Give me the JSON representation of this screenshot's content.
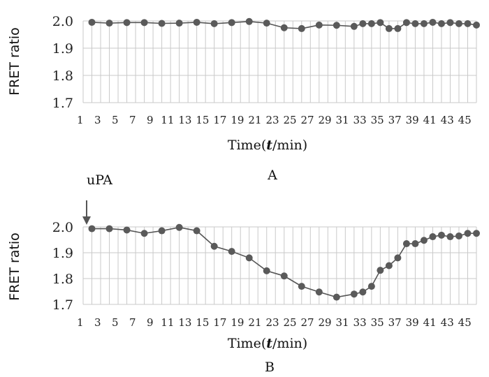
{
  "chart_data": [
    {
      "type": "line",
      "panel_label": "A",
      "ylabel": "FRET ratio",
      "xlabel_prefix": "Time(",
      "xlabel_var": "t",
      "xlabel_suffix": "/min)",
      "ylim": [
        1.7,
        2.0
      ],
      "yticks": [
        "2.0",
        "1.9",
        "1.8",
        "1.7"
      ],
      "ytick_values": [
        2.0,
        1.9,
        1.8,
        1.7
      ],
      "xlim": [
        1,
        46
      ],
      "xticks": [
        "1",
        "3",
        "5",
        "7",
        "9",
        "11",
        "13",
        "15",
        "17",
        "19",
        "21",
        "23",
        "25",
        "27",
        "29",
        "31",
        "33",
        "35",
        "37",
        "39",
        "41",
        "43",
        "45"
      ],
      "grid": true,
      "series": [
        {
          "x": [
            2,
            4,
            6,
            8,
            10,
            12,
            14,
            16,
            18,
            20,
            22,
            24,
            26,
            28,
            30,
            32,
            33,
            34,
            35,
            36,
            37,
            38,
            39,
            40,
            41,
            42,
            43,
            44,
            45,
            46
          ],
          "y": [
            1.995,
            1.992,
            1.994,
            1.994,
            1.991,
            1.992,
            1.995,
            1.99,
            1.994,
            1.998,
            1.992,
            1.975,
            1.972,
            1.985,
            1.984,
            1.98,
            1.99,
            1.99,
            1.994,
            1.972,
            1.972,
            1.994,
            1.99,
            1.99,
            1.995,
            1.99,
            1.994,
            1.99,
            1.99,
            1.985
          ]
        }
      ]
    },
    {
      "type": "line",
      "panel_label": "B",
      "annotation": "uPA",
      "ylabel": "FRET ratio",
      "xlabel_prefix": "Time(",
      "xlabel_var": "t",
      "xlabel_suffix": "/min)",
      "ylim": [
        1.7,
        2.0
      ],
      "yticks": [
        "2.0",
        "1.9",
        "1.8",
        "1.7"
      ],
      "ytick_values": [
        2.0,
        1.9,
        1.8,
        1.7
      ],
      "xlim": [
        1,
        46
      ],
      "xticks": [
        "1",
        "3",
        "5",
        "7",
        "9",
        "11",
        "13",
        "15",
        "17",
        "19",
        "21",
        "23",
        "25",
        "27",
        "29",
        "31",
        "33",
        "35",
        "37",
        "39",
        "41",
        "43",
        "45"
      ],
      "grid": true,
      "series": [
        {
          "x": [
            2,
            4,
            6,
            8,
            10,
            12,
            14,
            16,
            18,
            20,
            22,
            24,
            26,
            28,
            30,
            32,
            33,
            34,
            35,
            36,
            37,
            38,
            39,
            40,
            41,
            42,
            43,
            44,
            45,
            46
          ],
          "y": [
            1.993,
            1.993,
            1.988,
            1.975,
            1.985,
            1.998,
            1.985,
            1.925,
            1.905,
            1.88,
            1.83,
            1.81,
            1.77,
            1.748,
            1.728,
            1.74,
            1.748,
            1.77,
            1.832,
            1.85,
            1.88,
            1.935,
            1.935,
            1.948,
            1.962,
            1.968,
            1.962,
            1.965,
            1.975,
            1.975
          ]
        }
      ]
    }
  ]
}
